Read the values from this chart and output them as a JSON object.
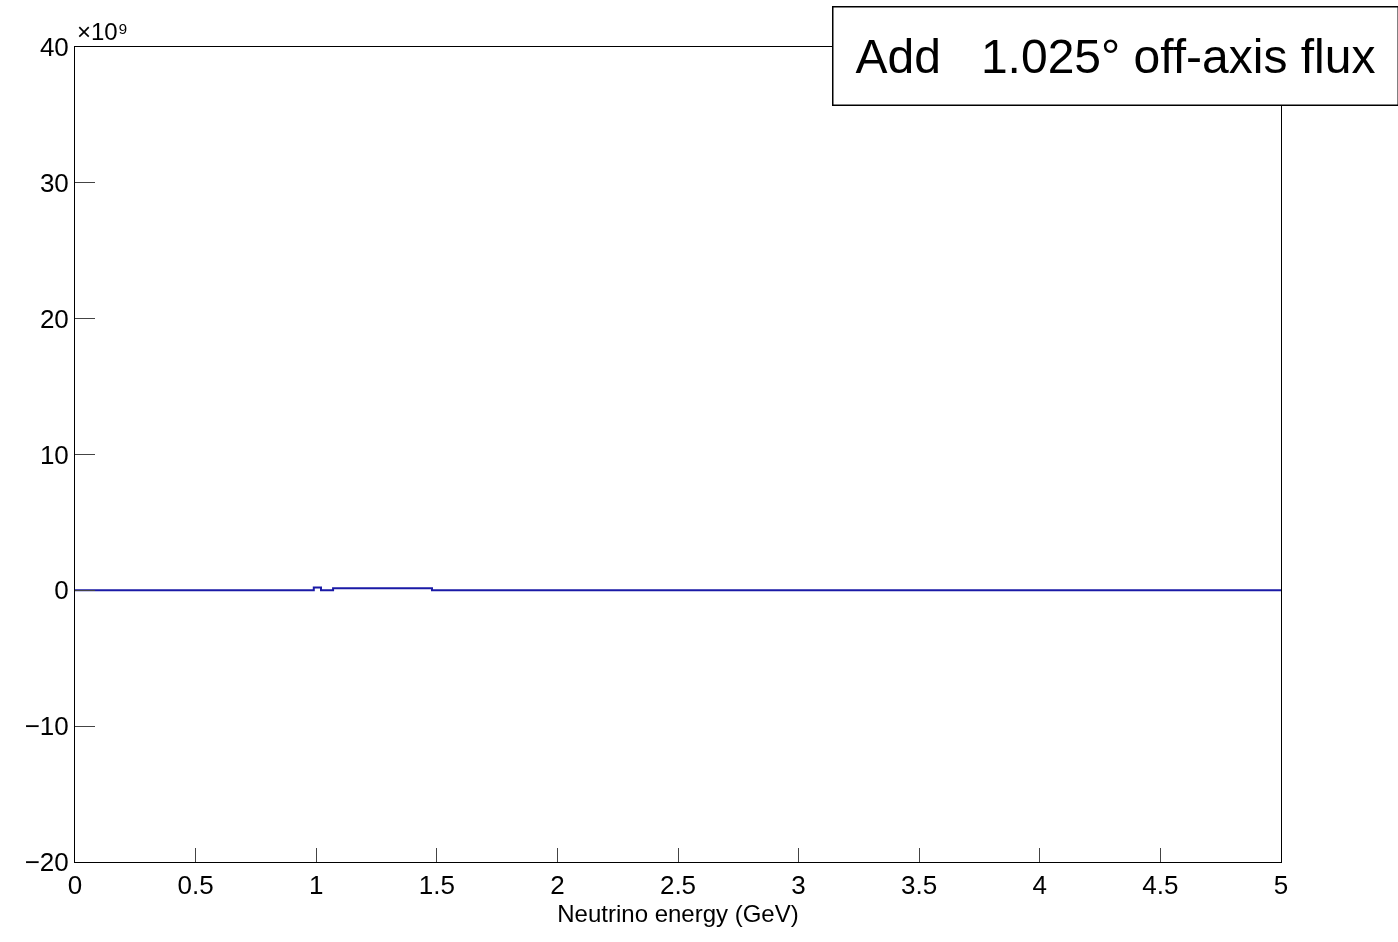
{
  "chart_data": {
    "type": "step",
    "title": "Add   1.025° off-axis flux",
    "xlabel": "Neutrino energy (GeV)",
    "annotations": [
      "×10⁹"
    ],
    "x": [
      0,
      0.99,
      1.02,
      1.07,
      1.48,
      5
    ],
    "series": [
      {
        "color": "#1a1aa6",
        "values": [
          0,
          0.2,
          0,
          0.15,
          0,
          0
        ]
      }
    ],
    "xlim": [
      0,
      5
    ],
    "xticks": [
      0,
      0.5,
      1,
      1.5,
      2,
      2.5,
      3,
      3.5,
      4,
      4.5,
      5
    ],
    "ylim": [
      -20,
      40
    ],
    "yticks": [
      {
        "value": -20,
        "label": "−20"
      },
      {
        "value": -10,
        "label": "−10"
      },
      0,
      10,
      20,
      30,
      40
    ]
  }
}
